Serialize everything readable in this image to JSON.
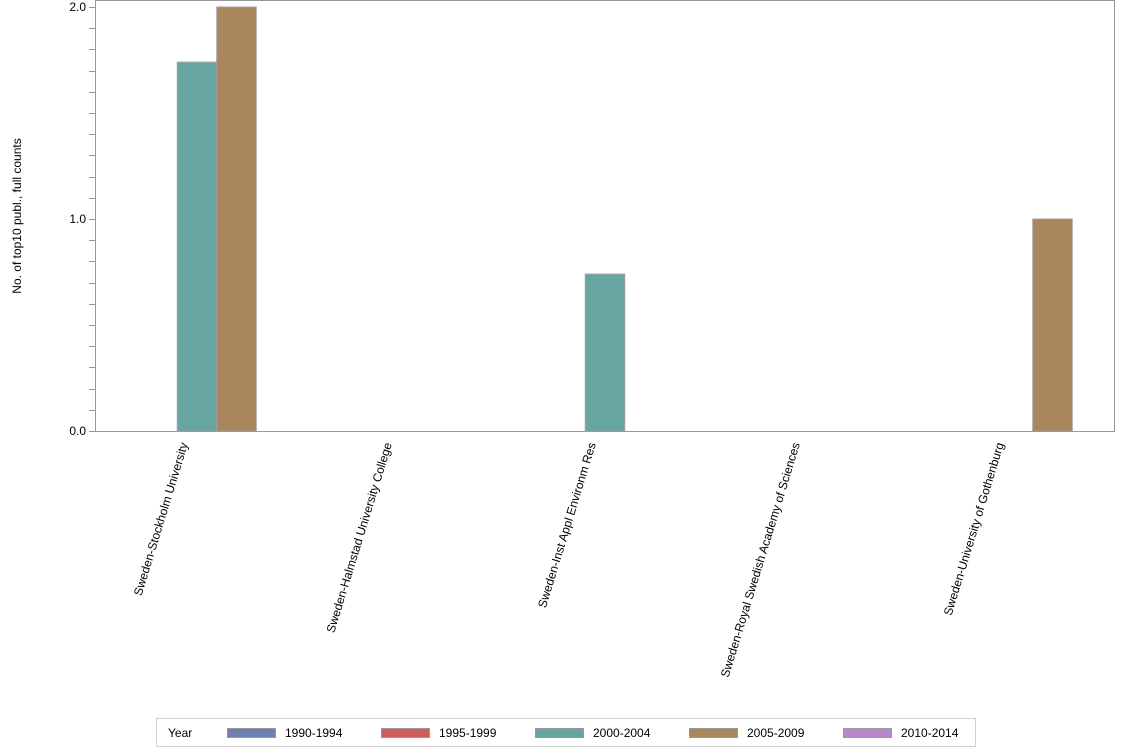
{
  "chart_data": {
    "type": "bar",
    "title": "",
    "xlabel": "",
    "ylabel": "No. of top10 publ., full counts",
    "ylim": [
      0,
      2
    ],
    "yticks": [
      "0.0",
      "1.0",
      "2.0"
    ],
    "y_minor_step": 0.1,
    "grid": false,
    "legend_position": "bottom",
    "legend_title": "Year",
    "categories": [
      "Sweden-Stockholm University",
      "Sweden-Halmstad University College",
      "Sweden-Inst Appl Environm Res",
      "Sweden-Royal Swedish Academy of Sciences",
      "Sweden-University of Gothenburg"
    ],
    "series": [
      {
        "name": "1990-1994",
        "color": "#6f7eb3",
        "values": [
          0,
          0,
          0,
          0,
          0
        ]
      },
      {
        "name": "1995-1999",
        "color": "#d05b5b",
        "values": [
          0,
          0,
          0,
          0,
          0
        ]
      },
      {
        "name": "2000-2004",
        "color": "#66a5a0",
        "values": [
          1.74,
          0,
          0.74,
          0,
          0
        ]
      },
      {
        "name": "2005-2009",
        "color": "#a9865b",
        "values": [
          2,
          0,
          0,
          0,
          1
        ]
      },
      {
        "name": "2010-2014",
        "color": "#b689c9",
        "values": [
          0,
          0,
          0,
          0,
          0
        ]
      }
    ]
  },
  "legend": {
    "title": "Year",
    "items": [
      "1990-1994",
      "1995-1999",
      "2000-2004",
      "2005-2009",
      "2010-2014"
    ]
  }
}
